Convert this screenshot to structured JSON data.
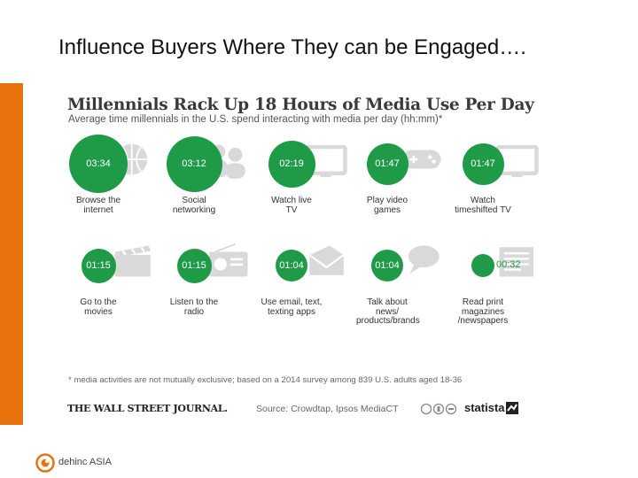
{
  "slide": {
    "title": "Influence Buyers Where They can be Engaged…."
  },
  "chart_data": {
    "type": "bubble",
    "title": "Millennials Rack Up 18 Hours of Media Use Per Day",
    "subtitle": "Average time millennials in the U.S. spend interacting with media per day (hh:mm)*",
    "items": [
      {
        "label": "Browse the internet",
        "label_lines": [
          "Browse the",
          "internet"
        ],
        "value": "03:34",
        "minutes": 214,
        "icon": "globe-icon"
      },
      {
        "label": "Social networking",
        "label_lines": [
          "Social",
          "networking"
        ],
        "value": "03:12",
        "minutes": 192,
        "icon": "people-icon"
      },
      {
        "label": "Watch live TV",
        "label_lines": [
          "Watch live",
          "TV"
        ],
        "value": "02:19",
        "minutes": 139,
        "icon": "tv-icon"
      },
      {
        "label": "Play video games",
        "label_lines": [
          "Play video",
          "games"
        ],
        "value": "01:47",
        "minutes": 107,
        "icon": "gamepad-icon"
      },
      {
        "label": "Watch timeshifted TV",
        "label_lines": [
          "Watch",
          "timeshifted TV"
        ],
        "value": "01:47",
        "minutes": 107,
        "icon": "tv-icon"
      },
      {
        "label": "Go to the movies",
        "label_lines": [
          "Go to the",
          "movies"
        ],
        "value": "01:15",
        "minutes": 75,
        "icon": "clapperboard-icon"
      },
      {
        "label": "Listen to the radio",
        "label_lines": [
          "Listen to the",
          "radio"
        ],
        "value": "01:15",
        "minutes": 75,
        "icon": "radio-icon"
      },
      {
        "label": "Use email, text, texting apps",
        "label_lines": [
          "Use email, text,",
          "texting apps"
        ],
        "value": "01:04",
        "minutes": 64,
        "icon": "envelope-icon"
      },
      {
        "label": "Talk about news/ products/brands",
        "label_lines": [
          "Talk about news/",
          "products/brands"
        ],
        "value": "01:04",
        "minutes": 64,
        "icon": "speech-bubble-icon"
      },
      {
        "label": "Read print magazines /newspapers",
        "label_lines": [
          "Read print",
          "magazines",
          "/newspapers"
        ],
        "value": "00:32",
        "minutes": 32,
        "icon": "newspaper-icon"
      }
    ],
    "footnote": "* media activities are not mutually exclusive; based on a 2014 survey among 839 U.S. adults aged 18-36",
    "source_publication": "THE WALL STREET JOURNAL.",
    "source": "Source: Crowdtap, Ipsos MediaCT",
    "brand": "statista",
    "colors": {
      "bubble": "#1f9a47",
      "accent_bar": "#e8720c",
      "icon_gray": "#d9d9d9"
    }
  },
  "footer": {
    "company": "dehinc ASIA"
  }
}
